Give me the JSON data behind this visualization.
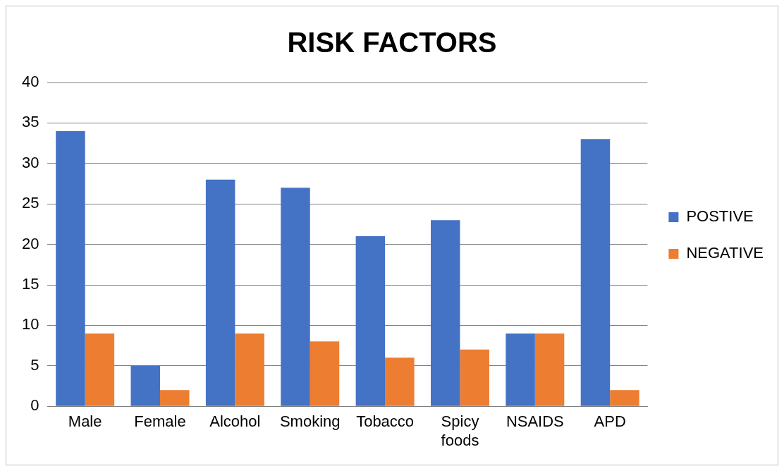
{
  "chart_data": {
    "type": "bar",
    "title": "RISK FACTORS",
    "categories": [
      "Male",
      "Female",
      "Alcohol",
      "Smoking",
      "Tobacco",
      "Spicy foods",
      "NSAIDS",
      "APD"
    ],
    "series": [
      {
        "name": "POSTIVE",
        "color": "#4472c4",
        "values": [
          34,
          5,
          28,
          27,
          21,
          23,
          9,
          33
        ]
      },
      {
        "name": "NEGATIVE",
        "color": "#ed7d31",
        "values": [
          9,
          2,
          9,
          8,
          6,
          7,
          9,
          2
        ]
      }
    ],
    "ylim": [
      0,
      40
    ],
    "yticks": [
      0,
      5,
      10,
      15,
      20,
      25,
      30,
      35,
      40
    ],
    "grid": "y",
    "legend": "right"
  }
}
